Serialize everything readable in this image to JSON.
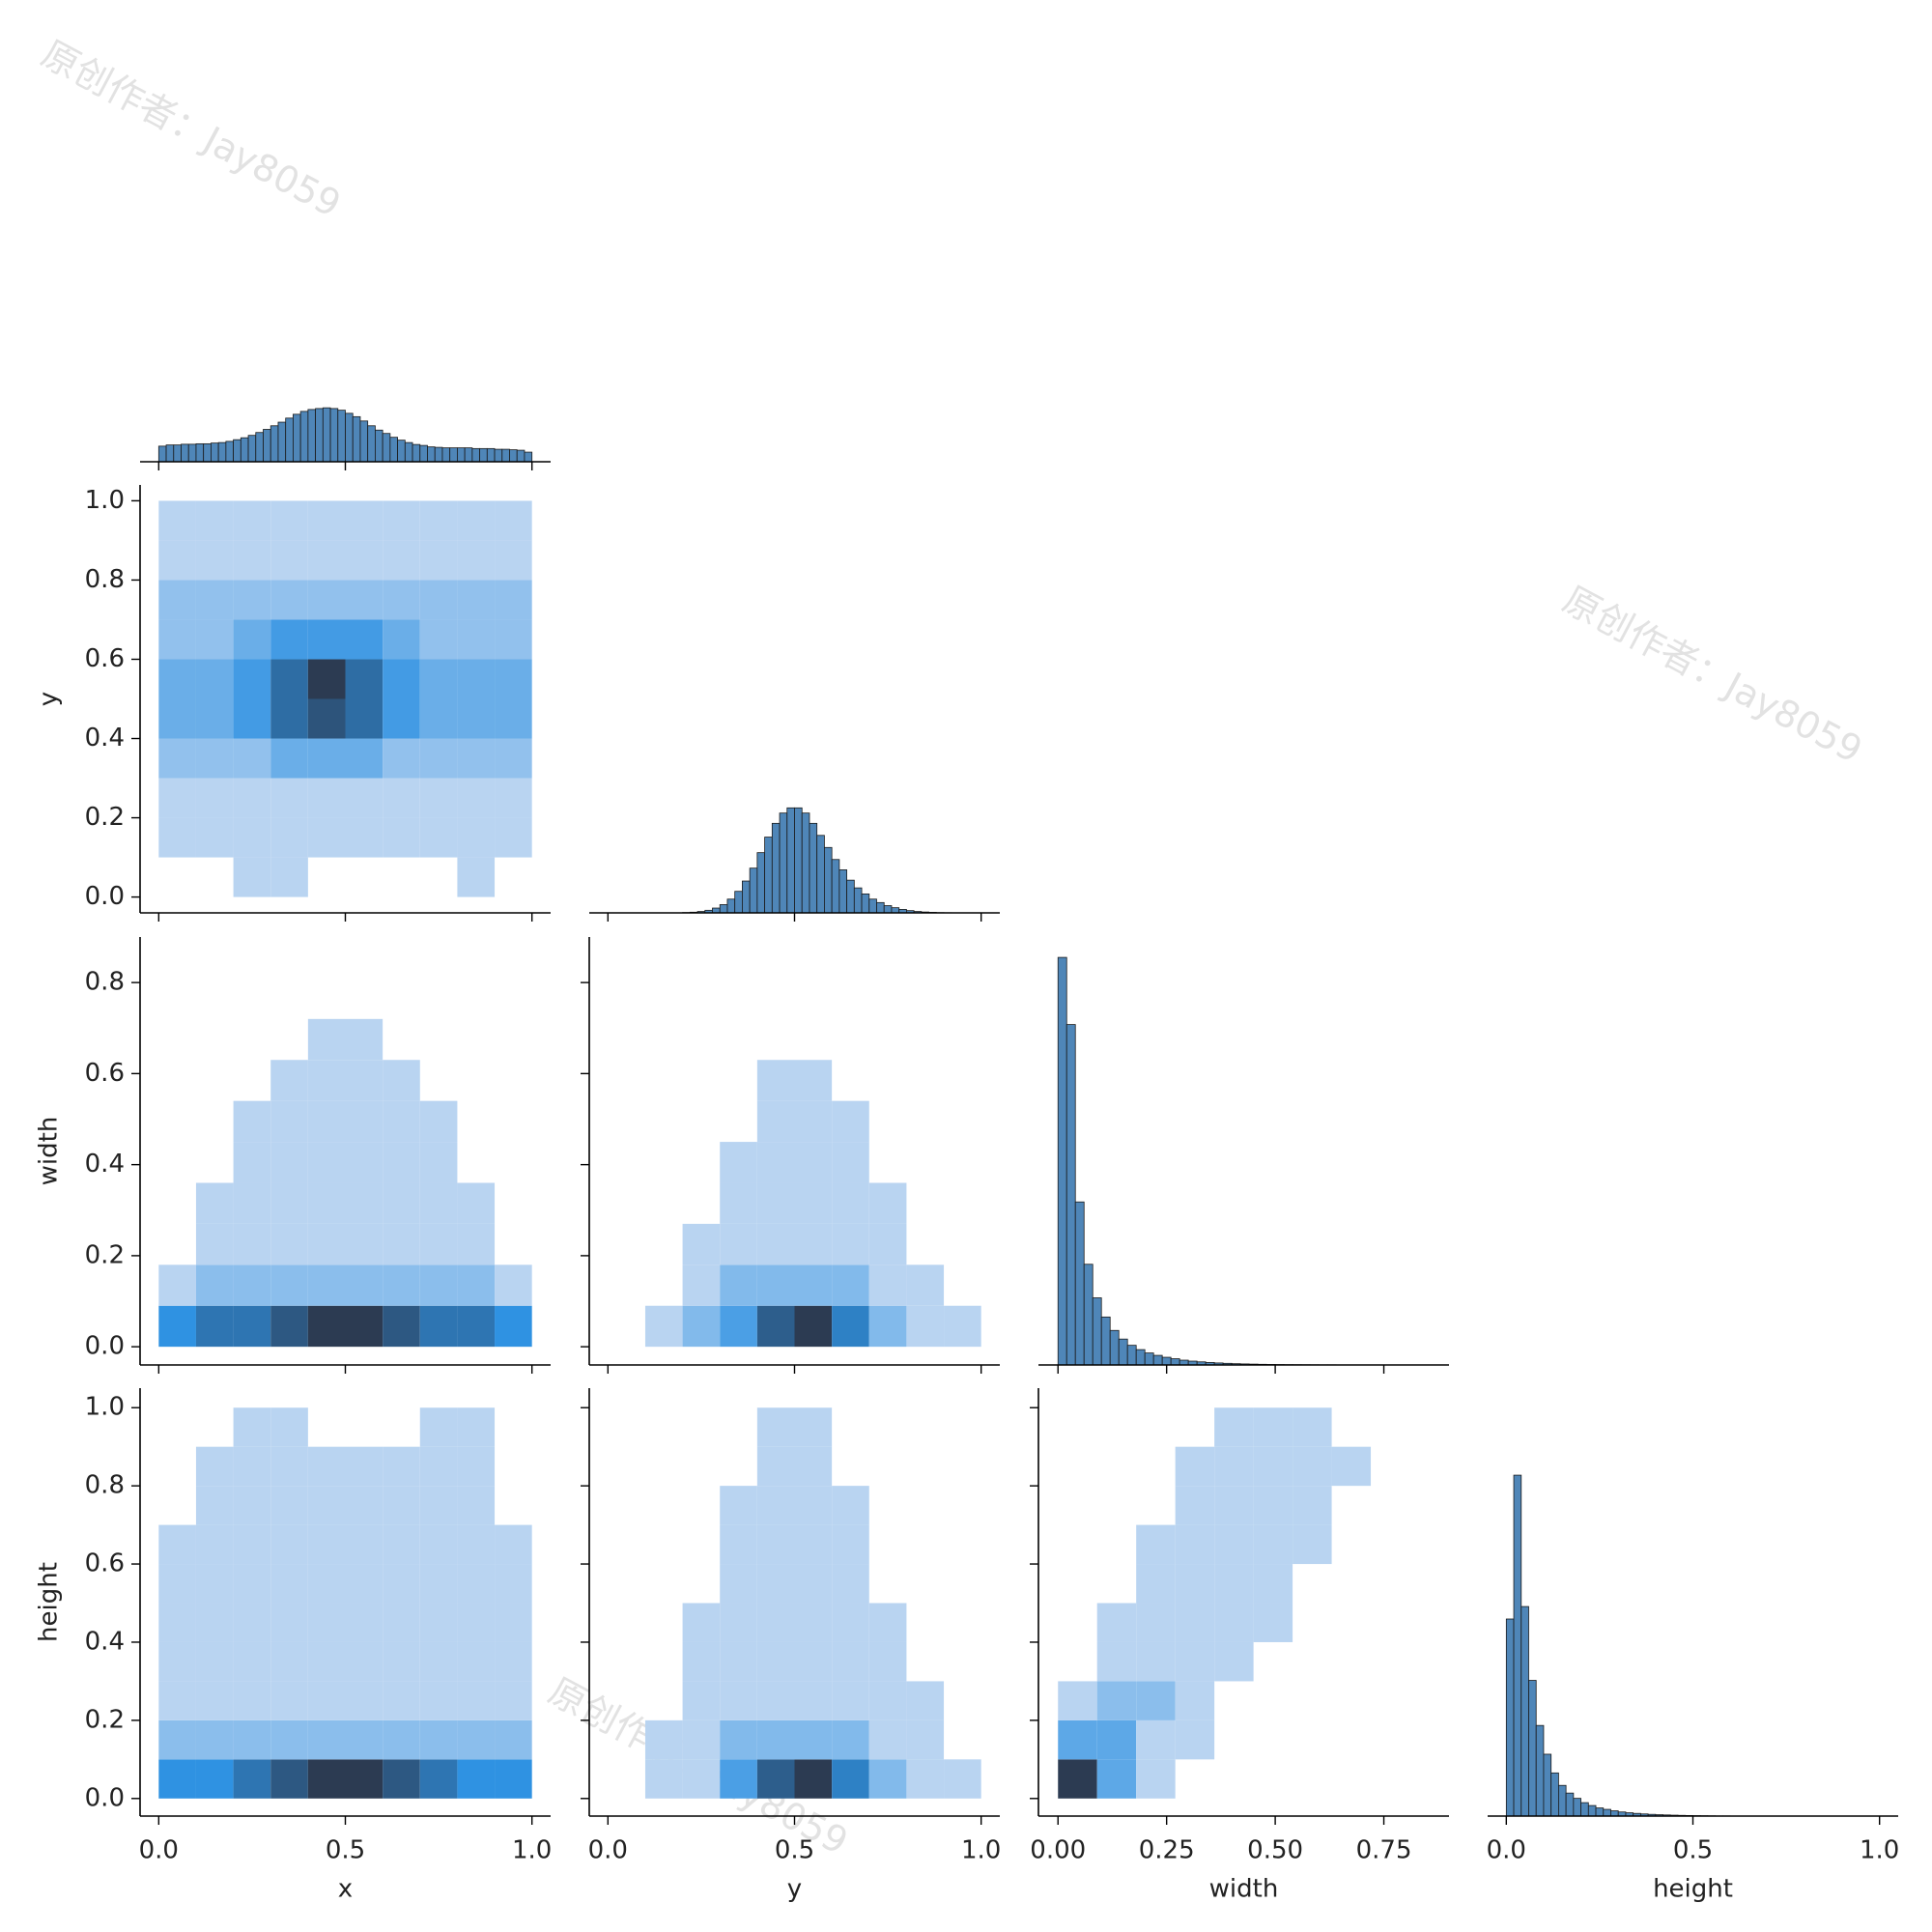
{
  "watermark": "原创作者：Jay8059",
  "chart_data": [
    {
      "type": "histogram",
      "color": "#4f86b8",
      "xlim": [
        -0.05,
        1.05
      ],
      "bins": [
        0,
        0.02,
        0.04,
        0.06,
        0.08,
        0.1,
        0.12,
        0.14,
        0.16,
        0.18,
        0.2,
        0.22,
        0.24,
        0.26,
        0.28,
        0.3,
        0.32,
        0.34,
        0.36,
        0.38,
        0.4,
        0.42,
        0.44,
        0.46,
        0.48,
        0.5,
        0.52,
        0.54,
        0.56,
        0.58,
        0.6,
        0.62,
        0.64,
        0.66,
        0.68,
        0.7,
        0.72,
        0.74,
        0.76,
        0.78,
        0.8,
        0.82,
        0.84,
        0.86,
        0.88,
        0.9,
        0.92,
        0.94,
        0.96,
        0.98,
        1
      ],
      "values": [
        325,
        350,
        350,
        365,
        365,
        375,
        375,
        390,
        400,
        425,
        460,
        500,
        550,
        610,
        675,
        750,
        825,
        910,
        990,
        1050,
        1090,
        1110,
        1125,
        1110,
        1075,
        1010,
        940,
        850,
        750,
        660,
        590,
        510,
        450,
        400,
        360,
        340,
        310,
        300,
        290,
        290,
        290,
        290,
        275,
        275,
        275,
        260,
        260,
        250,
        240,
        200
      ]
    },
    {
      "type": "heatmap",
      "colors": [
        "#b9d4f1",
        "#2f92e2",
        "#2c3b52"
      ],
      "xlim": [
        -0.05,
        1.05
      ],
      "ylim": [
        -0.04,
        1.04
      ],
      "ylabel": "y",
      "yticks": [
        {
          "value": 0,
          "label": "0.0"
        },
        0.2,
        0.4,
        0.6,
        0.8,
        {
          "value": 1,
          "label": "1.0"
        }
      ],
      "xbins": [
        0,
        0.1,
        0.2,
        0.3,
        0.4,
        0.5,
        0.6,
        0.7,
        0.8,
        0.9,
        1
      ],
      "ybins": [
        0,
        0.1,
        0.2,
        0.3,
        0.4,
        0.5,
        0.6,
        0.7,
        0.8,
        0.9,
        1
      ],
      "z": [
        [
          0,
          0,
          1,
          1,
          0,
          0,
          0,
          0,
          1,
          0
        ],
        [
          1,
          1,
          1,
          1,
          1,
          1,
          1,
          1,
          1,
          1
        ],
        [
          1,
          1,
          1,
          1,
          1,
          1,
          1,
          1,
          1,
          1
        ],
        [
          2,
          2,
          2,
          3,
          3,
          3,
          2,
          2,
          2,
          2
        ],
        [
          3,
          3,
          4,
          6,
          7,
          6,
          4,
          3,
          3,
          3
        ],
        [
          3,
          3,
          4,
          6,
          8,
          6,
          4,
          3,
          3,
          3
        ],
        [
          2,
          2,
          3,
          4,
          4,
          4,
          3,
          2,
          2,
          2
        ],
        [
          2,
          2,
          2,
          2,
          2,
          2,
          2,
          2,
          2,
          2
        ],
        [
          1,
          1,
          1,
          1,
          1,
          1,
          1,
          1,
          1,
          1
        ],
        [
          1,
          1,
          1,
          1,
          1,
          1,
          1,
          1,
          1,
          1
        ]
      ]
    },
    {
      "type": "histogram",
      "color": "#4f86b8",
      "xlim": [
        -0.05,
        1.05
      ],
      "bins": [
        0,
        0.02,
        0.04,
        0.06,
        0.08,
        0.1,
        0.12,
        0.14,
        0.16,
        0.18,
        0.2,
        0.22,
        0.24,
        0.26,
        0.28,
        0.3,
        0.32,
        0.34,
        0.36,
        0.38,
        0.4,
        0.42,
        0.44,
        0.46,
        0.48,
        0.5,
        0.52,
        0.54,
        0.56,
        0.58,
        0.6,
        0.62,
        0.64,
        0.66,
        0.68,
        0.7,
        0.72,
        0.74,
        0.76,
        0.78,
        0.8,
        0.82,
        0.84,
        0.86,
        0.88,
        0.9,
        0.92,
        0.94,
        0.96,
        0.98,
        1
      ],
      "values": [
        0,
        0,
        0,
        0,
        0,
        0,
        0,
        0,
        0,
        2,
        7,
        14,
        29,
        54,
        100,
        172,
        287,
        449,
        664,
        933,
        1256,
        1580,
        1867,
        2082,
        2190,
        2190,
        2082,
        1867,
        1616,
        1364,
        1113,
        898,
        682,
        521,
        395,
        287,
        215,
        151,
        108,
        72,
        47,
        29,
        18,
        11,
        5,
        3,
        1,
        1,
        0,
        0
      ]
    },
    {
      "type": "heatmap",
      "colors": [
        "#b9d4f1",
        "#2f92e2",
        "#2c3b52"
      ],
      "xlim": [
        -0.05,
        1.05
      ],
      "ylim": [
        -0.04,
        0.9
      ],
      "ylabel": "width",
      "yticks": [
        {
          "value": 0,
          "label": "0.0"
        },
        0.2,
        0.4,
        0.6,
        0.8
      ],
      "xbins": [
        0,
        0.1,
        0.2,
        0.3,
        0.4,
        0.5,
        0.6,
        0.7,
        0.8,
        0.9,
        1
      ],
      "ybins": [
        0,
        0.09,
        0.18,
        0.27,
        0.36,
        0.45,
        0.54,
        0.63,
        0.72,
        0.81,
        0.9
      ],
      "z": [
        [
          4,
          5,
          5,
          6,
          7,
          7,
          6,
          5,
          5,
          4
        ],
        [
          1,
          2,
          2,
          2,
          2,
          2,
          2,
          2,
          2,
          1
        ],
        [
          0,
          1,
          1,
          1,
          1,
          1,
          1,
          1,
          1,
          0
        ],
        [
          0,
          1,
          1,
          1,
          1,
          1,
          1,
          1,
          1,
          0
        ],
        [
          0,
          0,
          1,
          1,
          1,
          1,
          1,
          1,
          0,
          0
        ],
        [
          0,
          0,
          1,
          1,
          1,
          1,
          1,
          1,
          0,
          0
        ],
        [
          0,
          0,
          0,
          1,
          1,
          1,
          1,
          0,
          0,
          0
        ],
        [
          0,
          0,
          0,
          0,
          1,
          1,
          0,
          0,
          0,
          0
        ],
        [
          0,
          0,
          0,
          0,
          0,
          0,
          0,
          0,
          0,
          0
        ],
        [
          0,
          0,
          0,
          0,
          0,
          0,
          0,
          0,
          0,
          0
        ]
      ]
    },
    {
      "type": "heatmap",
      "colors": [
        "#b9d4f1",
        "#2f92e2",
        "#2c3b52"
      ],
      "xlim": [
        -0.05,
        1.05
      ],
      "ylim": [
        -0.04,
        0.9
      ],
      "xbins": [
        0,
        0.1,
        0.2,
        0.3,
        0.4,
        0.5,
        0.6,
        0.7,
        0.8,
        0.9,
        1
      ],
      "ybins": [
        0,
        0.09,
        0.18,
        0.27,
        0.36,
        0.45,
        0.54,
        0.63,
        0.72,
        0.81,
        0.9
      ],
      "z": [
        [
          0,
          1,
          2,
          3,
          5,
          6,
          4,
          2,
          1,
          1
        ],
        [
          0,
          0,
          1,
          2,
          2,
          2,
          2,
          1,
          1,
          0
        ],
        [
          0,
          0,
          1,
          1,
          1,
          1,
          1,
          1,
          0,
          0
        ],
        [
          0,
          0,
          0,
          1,
          1,
          1,
          1,
          1,
          0,
          0
        ],
        [
          0,
          0,
          0,
          1,
          1,
          1,
          1,
          0,
          0,
          0
        ],
        [
          0,
          0,
          0,
          0,
          1,
          1,
          1,
          0,
          0,
          0
        ],
        [
          0,
          0,
          0,
          0,
          1,
          1,
          0,
          0,
          0,
          0
        ],
        [
          0,
          0,
          0,
          0,
          0,
          0,
          0,
          0,
          0,
          0
        ],
        [
          0,
          0,
          0,
          0,
          0,
          0,
          0,
          0,
          0,
          0
        ],
        [
          0,
          0,
          0,
          0,
          0,
          0,
          0,
          0,
          0,
          0
        ]
      ]
    },
    {
      "type": "histogram",
      "color": "#4f86b8",
      "xlim": [
        -0.045,
        0.9
      ],
      "bins": [
        0,
        0.02,
        0.04,
        0.06,
        0.08,
        0.1,
        0.12,
        0.14,
        0.16,
        0.18,
        0.2,
        0.22,
        0.24,
        0.26,
        0.28,
        0.3,
        0.32,
        0.34,
        0.36,
        0.38,
        0.4,
        0.42,
        0.44,
        0.46,
        0.48,
        0.5,
        0.52,
        0.54,
        0.56,
        0.58,
        0.6,
        0.62,
        0.64,
        0.66,
        0.68,
        0.7,
        0.72,
        0.74,
        0.76,
        0.78,
        0.8,
        0.82,
        0.84,
        0.86,
        0.88
      ],
      "values": [
        8500,
        7100,
        3400,
        2100,
        1400,
        1000,
        720,
        540,
        410,
        320,
        250,
        200,
        160,
        130,
        100,
        80,
        65,
        52,
        42,
        34,
        27,
        22,
        18,
        14,
        11,
        9,
        7,
        6,
        5,
        4,
        3,
        3,
        2,
        2,
        1,
        1,
        1,
        1,
        0,
        0,
        0,
        0,
        0,
        1
      ]
    },
    {
      "type": "heatmap",
      "colors": [
        "#b9d4f1",
        "#2f92e2",
        "#2c3b52"
      ],
      "xlim": [
        -0.05,
        1.05
      ],
      "ylim": [
        -0.045,
        1.05
      ],
      "xlabel": "x",
      "ylabel": "height",
      "xticks": [
        {
          "value": 0,
          "label": "0.0"
        },
        0.5,
        {
          "value": 1,
          "label": "1.0"
        }
      ],
      "yticks": [
        {
          "value": 0,
          "label": "0.0"
        },
        0.2,
        0.4,
        0.6,
        0.8,
        {
          "value": 1,
          "label": "1.0"
        }
      ],
      "xbins": [
        0,
        0.1,
        0.2,
        0.3,
        0.4,
        0.5,
        0.6,
        0.7,
        0.8,
        0.9,
        1
      ],
      "ybins": [
        0,
        0.1,
        0.2,
        0.3,
        0.4,
        0.5,
        0.6,
        0.7,
        0.8,
        0.9,
        1
      ],
      "z": [
        [
          4,
          4,
          5,
          6,
          7,
          7,
          6,
          5,
          4,
          4
        ],
        [
          2,
          2,
          2,
          2,
          2,
          2,
          2,
          2,
          2,
          2
        ],
        [
          1,
          1,
          1,
          1,
          1,
          1,
          1,
          1,
          1,
          1
        ],
        [
          1,
          1,
          1,
          1,
          1,
          1,
          1,
          1,
          1,
          1
        ],
        [
          1,
          1,
          1,
          1,
          1,
          1,
          1,
          1,
          1,
          1
        ],
        [
          1,
          1,
          1,
          1,
          1,
          1,
          1,
          1,
          1,
          1
        ],
        [
          1,
          1,
          1,
          1,
          1,
          1,
          1,
          1,
          1,
          1
        ],
        [
          0,
          1,
          1,
          1,
          1,
          1,
          1,
          1,
          1,
          0
        ],
        [
          0,
          1,
          1,
          1,
          1,
          1,
          1,
          1,
          1,
          0
        ],
        [
          0,
          0,
          1,
          1,
          0,
          0,
          0,
          1,
          1,
          0
        ]
      ]
    },
    {
      "type": "heatmap",
      "colors": [
        "#b9d4f1",
        "#2f92e2",
        "#2c3b52"
      ],
      "xlim": [
        -0.05,
        1.05
      ],
      "ylim": [
        -0.045,
        1.05
      ],
      "xlabel": "y",
      "xticks": [
        {
          "value": 0,
          "label": "0.0"
        },
        0.5,
        {
          "value": 1,
          "label": "1.0"
        }
      ],
      "xbins": [
        0,
        0.1,
        0.2,
        0.3,
        0.4,
        0.5,
        0.6,
        0.7,
        0.8,
        0.9,
        1
      ],
      "ybins": [
        0,
        0.1,
        0.2,
        0.3,
        0.4,
        0.5,
        0.6,
        0.7,
        0.8,
        0.9,
        1
      ],
      "z": [
        [
          0,
          1,
          1,
          3,
          5,
          6,
          4,
          2,
          1,
          1
        ],
        [
          0,
          1,
          1,
          2,
          2,
          2,
          2,
          1,
          1,
          0
        ],
        [
          0,
          0,
          1,
          1,
          1,
          1,
          1,
          1,
          1,
          0
        ],
        [
          0,
          0,
          1,
          1,
          1,
          1,
          1,
          1,
          0,
          0
        ],
        [
          0,
          0,
          1,
          1,
          1,
          1,
          1,
          1,
          0,
          0
        ],
        [
          0,
          0,
          0,
          1,
          1,
          1,
          1,
          0,
          0,
          0
        ],
        [
          0,
          0,
          0,
          1,
          1,
          1,
          1,
          0,
          0,
          0
        ],
        [
          0,
          0,
          0,
          1,
          1,
          1,
          1,
          0,
          0,
          0
        ],
        [
          0,
          0,
          0,
          0,
          1,
          1,
          0,
          0,
          0,
          0
        ],
        [
          0,
          0,
          0,
          0,
          1,
          1,
          0,
          0,
          0,
          0
        ]
      ]
    },
    {
      "type": "heatmap",
      "colors": [
        "#b9d4f1",
        "#2f92e2",
        "#2c3b52"
      ],
      "xlim": [
        -0.045,
        0.9
      ],
      "ylim": [
        -0.045,
        1.05
      ],
      "xlabel": "width",
      "xticks": [
        {
          "value": 0,
          "label": "0.00"
        },
        0.25,
        {
          "value": 0.5,
          "label": "0.50"
        },
        0.75
      ],
      "xbins": [
        0,
        0.09,
        0.18,
        0.27,
        0.36,
        0.45,
        0.54,
        0.63,
        0.72,
        0.81,
        0.9
      ],
      "ybins": [
        0,
        0.1,
        0.2,
        0.3,
        0.4,
        0.5,
        0.6,
        0.7,
        0.8,
        0.9,
        1
      ],
      "z": [
        [
          7,
          3,
          1,
          0,
          0,
          0,
          0,
          0,
          0,
          0
        ],
        [
          3,
          3,
          1,
          1,
          0,
          0,
          0,
          0,
          0,
          0
        ],
        [
          1,
          2,
          2,
          1,
          0,
          0,
          0,
          0,
          0,
          0
        ],
        [
          0,
          1,
          1,
          1,
          1,
          0,
          0,
          0,
          0,
          0
        ],
        [
          0,
          1,
          1,
          1,
          1,
          1,
          0,
          0,
          0,
          0
        ],
        [
          0,
          0,
          1,
          1,
          1,
          1,
          0,
          0,
          0,
          0
        ],
        [
          0,
          0,
          1,
          1,
          1,
          1,
          1,
          0,
          0,
          0
        ],
        [
          0,
          0,
          0,
          1,
          1,
          1,
          1,
          0,
          0,
          0
        ],
        [
          0,
          0,
          0,
          1,
          1,
          1,
          1,
          1,
          0,
          0
        ],
        [
          0,
          0,
          0,
          0,
          1,
          1,
          1,
          0,
          0,
          0
        ]
      ]
    },
    {
      "type": "histogram",
      "color": "#4f86b8",
      "xlim": [
        -0.05,
        1.05
      ],
      "xlabel": "height",
      "xticks": [
        {
          "value": 0,
          "label": "0.0"
        },
        0.5,
        {
          "value": 1,
          "label": "1.0"
        }
      ],
      "bins": [
        0,
        0.02,
        0.04,
        0.06,
        0.08,
        0.1,
        0.12,
        0.14,
        0.16,
        0.18,
        0.2,
        0.22,
        0.24,
        0.26,
        0.28,
        0.3,
        0.32,
        0.34,
        0.36,
        0.38,
        0.4,
        0.42,
        0.44,
        0.46,
        0.48,
        0.5,
        0.52,
        0.54,
        0.56,
        0.58,
        0.6,
        0.62,
        0.64,
        0.66,
        0.68,
        0.7,
        0.72,
        0.74,
        0.76,
        0.78,
        0.8,
        0.82,
        0.84,
        0.86,
        0.88,
        0.9,
        0.92,
        0.94,
        0.96,
        0.98,
        1
      ],
      "values": [
        4110,
        7110,
        4370,
        2830,
        1890,
        1290,
        900,
        640,
        480,
        370,
        280,
        220,
        170,
        140,
        110,
        86,
        69,
        56,
        45,
        36,
        29,
        24,
        19,
        15,
        12,
        9,
        7,
        5,
        3,
        3,
        2,
        2,
        1,
        1,
        1,
        0,
        0,
        0,
        0,
        0,
        0,
        0,
        0,
        0,
        0,
        0,
        0,
        0,
        0,
        0
      ]
    }
  ]
}
